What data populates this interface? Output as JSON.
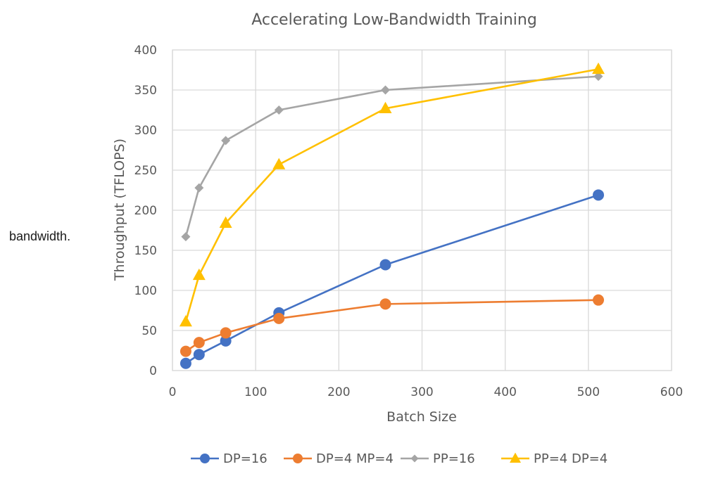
{
  "side_text": "bandwidth.",
  "chart_data": {
    "type": "line",
    "title": "Accelerating Low-Bandwidth Training",
    "xlabel": "Batch Size",
    "ylabel": "Throughput (TFLOPS)",
    "xlim": [
      0,
      600
    ],
    "ylim": [
      0,
      400
    ],
    "xticks": [
      0,
      100,
      200,
      300,
      400,
      500,
      600
    ],
    "yticks": [
      0,
      50,
      100,
      150,
      200,
      250,
      300,
      350,
      400
    ],
    "grid": true,
    "legend_position": "bottom",
    "x": [
      16,
      32,
      64,
      128,
      256,
      512
    ],
    "series": [
      {
        "name": "DP=16",
        "color": "#4472c4",
        "marker": "circle",
        "values": [
          9,
          20,
          37,
          72,
          132,
          219
        ]
      },
      {
        "name": "DP=4 MP=4",
        "color": "#ed7d31",
        "marker": "circle",
        "values": [
          24,
          35,
          47,
          65,
          83,
          88
        ]
      },
      {
        "name": "PP=16",
        "color": "#a5a5a5",
        "marker": "diamond",
        "values": [
          167,
          228,
          287,
          325,
          350,
          367
        ]
      },
      {
        "name": "PP=4 DP=4",
        "color": "#ffc000",
        "marker": "triangle",
        "values": [
          61,
          119,
          184,
          257,
          327,
          376
        ]
      }
    ]
  }
}
